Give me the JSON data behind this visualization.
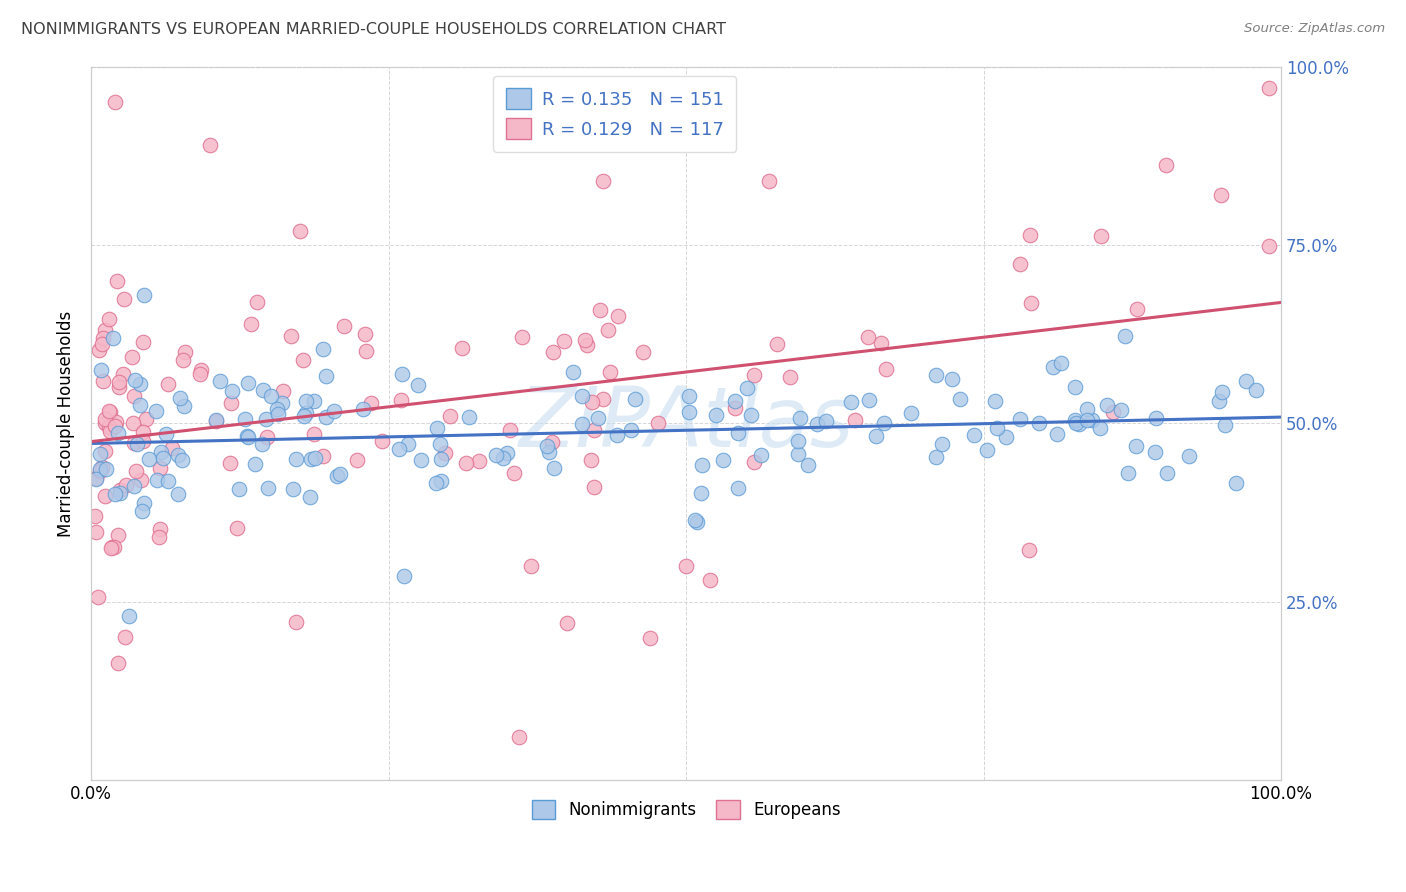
{
  "title": "NONIMMIGRANTS VS EUROPEAN MARRIED-COUPLE HOUSEHOLDS CORRELATION CHART",
  "source": "Source: ZipAtlas.com",
  "ylabel": "Married-couple Households",
  "xlim": [
    0,
    1
  ],
  "ylim": [
    0,
    1
  ],
  "blue_R": 0.135,
  "blue_N": 151,
  "pink_R": 0.129,
  "pink_N": 117,
  "blue_color": "#adc8e8",
  "pink_color": "#f5b8c8",
  "blue_edge_color": "#5b9bd5",
  "pink_edge_color": "#e07090",
  "blue_line_color": "#4472c4",
  "pink_line_color": "#d05070",
  "legend_label_blue": "Nonimmigrants",
  "legend_label_pink": "Europeans",
  "right_axis_color": "#4472c4",
  "watermark_color": "#c8dff0",
  "title_color": "#404040",
  "source_color": "#808080"
}
